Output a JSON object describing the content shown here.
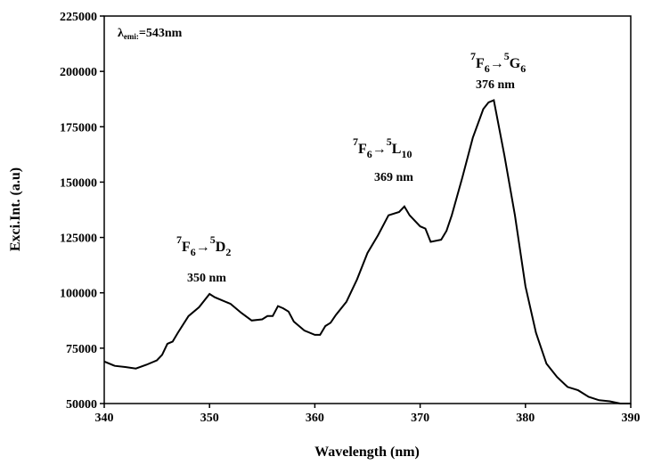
{
  "chart_data": {
    "type": "line",
    "xlabel": "Wavelength (nm)",
    "ylabel": "Exci.Int. (a.u)",
    "xlim": [
      340,
      390
    ],
    "xticks": [
      340,
      350,
      360,
      370,
      380,
      390
    ],
    "ylim": [
      50000,
      225000
    ],
    "yticks": [
      50000,
      75000,
      100000,
      125000,
      150000,
      175000,
      200000,
      225000
    ],
    "series": [
      {
        "color": "#000000",
        "x": [
          340,
          341,
          342,
          343,
          344,
          345,
          345.5,
          346,
          346.5,
          347,
          348,
          349,
          350,
          350.5,
          351,
          352,
          353,
          354,
          355,
          355.5,
          356,
          356.5,
          357,
          357.5,
          358,
          359,
          360,
          360.5,
          361,
          361.5,
          362,
          363,
          364,
          365,
          366,
          367,
          368,
          368.5,
          369,
          370,
          370.5,
          371,
          372,
          372.5,
          373,
          374,
          375,
          376,
          376.5,
          377,
          378,
          379,
          380,
          381,
          382,
          383,
          384,
          385,
          386,
          387,
          388,
          389,
          390
        ],
        "values": [
          69000,
          67000,
          66500,
          65800,
          67500,
          69500,
          72000,
          77000,
          78000,
          82000,
          89500,
          93500,
          99500,
          98000,
          97000,
          95000,
          91000,
          87500,
          88000,
          89500,
          89500,
          94000,
          93000,
          91500,
          87000,
          83000,
          81000,
          81000,
          85000,
          86500,
          90000,
          96000,
          106000,
          118000,
          126000,
          135000,
          136500,
          139000,
          135000,
          130000,
          129000,
          123000,
          124000,
          128000,
          135000,
          152000,
          170000,
          183000,
          186000,
          187000,
          162000,
          135000,
          103000,
          82000,
          68000,
          62000,
          57500,
          56000,
          53000,
          51500,
          51000,
          50000,
          50000
        ]
      }
    ],
    "annotations": [
      {
        "parts": [
          "λ",
          "emi:",
          "=543nm"
        ]
      },
      {
        "parts": [
          "7",
          "F",
          "6",
          "→",
          "5",
          "G",
          "6"
        ],
        "note": "376 nm"
      },
      {
        "parts": [
          "7",
          "F",
          "6",
          "→",
          "5",
          "L",
          "10"
        ],
        "note": "369 nm"
      },
      {
        "parts": [
          "7",
          "F",
          "6",
          "→",
          "5",
          "D",
          "2"
        ],
        "note": "350 nm"
      }
    ]
  }
}
